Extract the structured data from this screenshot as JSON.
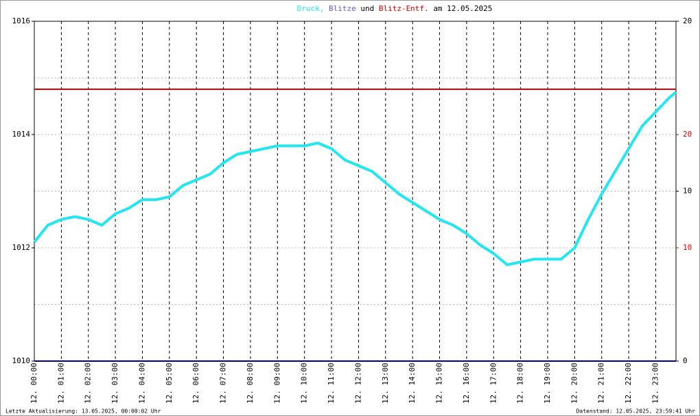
{
  "chart_data": {
    "type": "line",
    "title": [
      {
        "text": "Druck,",
        "color": "#22e6f0"
      },
      {
        "text": "Blitze",
        "color": "#6a5acd"
      },
      {
        "text": "und",
        "color": "#000000"
      },
      {
        "text": "Blitz-Entf.",
        "color": "#e00000"
      },
      {
        "text": "am 12.05.2025",
        "color": "#000000"
      }
    ],
    "xlim": [
      0,
      23.75
    ],
    "xticks": [
      {
        "value": 0,
        "label": "12. 00:00"
      },
      {
        "value": 1,
        "label": "12. 01:00"
      },
      {
        "value": 2,
        "label": "12. 02:00"
      },
      {
        "value": 3,
        "label": "12. 03:00"
      },
      {
        "value": 4,
        "label": "12. 04:00"
      },
      {
        "value": 5,
        "label": "12. 05:00"
      },
      {
        "value": 6,
        "label": "12. 06:00"
      },
      {
        "value": 7,
        "label": "12. 07:00"
      },
      {
        "value": 8,
        "label": "12. 08:00"
      },
      {
        "value": 9,
        "label": "12. 09:00"
      },
      {
        "value": 10,
        "label": "12. 10:00"
      },
      {
        "value": 11,
        "label": "12. 11:00"
      },
      {
        "value": 12,
        "label": "12. 12:00"
      },
      {
        "value": 13,
        "label": "12. 13:00"
      },
      {
        "value": 14,
        "label": "12. 14:00"
      },
      {
        "value": 15,
        "label": "12. 15:00"
      },
      {
        "value": 16,
        "label": "12. 16:00"
      },
      {
        "value": 17,
        "label": "12. 17:00"
      },
      {
        "value": 18,
        "label": "12. 18:00"
      },
      {
        "value": 19,
        "label": "12. 19:00"
      },
      {
        "value": 20,
        "label": "12. 20:00"
      },
      {
        "value": 21,
        "label": "12. 21:00"
      },
      {
        "value": 22,
        "label": "12. 22:00"
      },
      {
        "value": 23,
        "label": "12. 23:00"
      }
    ],
    "ylim": [
      1010,
      1016
    ],
    "yticks": [
      1010,
      1012,
      1014,
      1016
    ],
    "minor_yticks": [
      1011,
      1013,
      1015
    ],
    "y2lim": [
      0,
      20
    ],
    "y2ticks": [
      0,
      10,
      20
    ],
    "y2color": "#000000",
    "y3lim": [
      0,
      30
    ],
    "y3ticks": [
      10,
      20
    ],
    "y3color": "#e00000",
    "series": [
      {
        "color": "#22e6f0",
        "axis": "y",
        "x": [
          0,
          0.5,
          1,
          1.5,
          2,
          2.5,
          3,
          3.5,
          4,
          4.5,
          5,
          5.5,
          6,
          6.5,
          7,
          7.5,
          8,
          8.5,
          9,
          9.5,
          10,
          10.5,
          11,
          11.5,
          12,
          12.5,
          13,
          13.5,
          14,
          14.5,
          15,
          15.5,
          16,
          16.5,
          17,
          17.5,
          18,
          18.5,
          19,
          19.5,
          20,
          20.5,
          21,
          21.5,
          22,
          22.5,
          23,
          23.5,
          23.75
        ],
        "values": [
          1012.1,
          1012.4,
          1012.5,
          1012.55,
          1012.5,
          1012.4,
          1012.6,
          1012.7,
          1012.85,
          1012.85,
          1012.9,
          1013.1,
          1013.2,
          1013.3,
          1013.5,
          1013.65,
          1013.7,
          1013.75,
          1013.8,
          1013.8,
          1013.8,
          1013.85,
          1013.75,
          1013.55,
          1013.45,
          1013.35,
          1013.15,
          1012.95,
          1012.8,
          1012.65,
          1012.5,
          1012.4,
          1012.25,
          1012.05,
          1011.9,
          1011.7,
          1011.75,
          1011.8,
          1011.8,
          1011.8,
          1012.0,
          1012.5,
          1012.95,
          1013.35,
          1013.75,
          1014.15,
          1014.4,
          1014.65,
          1014.75
        ]
      },
      {
        "color": "#000080",
        "axis": "y2",
        "x": [
          0,
          23.75
        ],
        "values": [
          0,
          0
        ]
      },
      {
        "color": "#e00000",
        "axis": "y3",
        "x": [
          0,
          23.75
        ],
        "values": [
          24,
          24
        ]
      }
    ],
    "footer_left": "Letzte Aktualisierung: 13.05.2025, 00:00:02 Uhr",
    "footer_right": "Datenstand: 12.05.2025, 23:59:41 Uhr"
  }
}
